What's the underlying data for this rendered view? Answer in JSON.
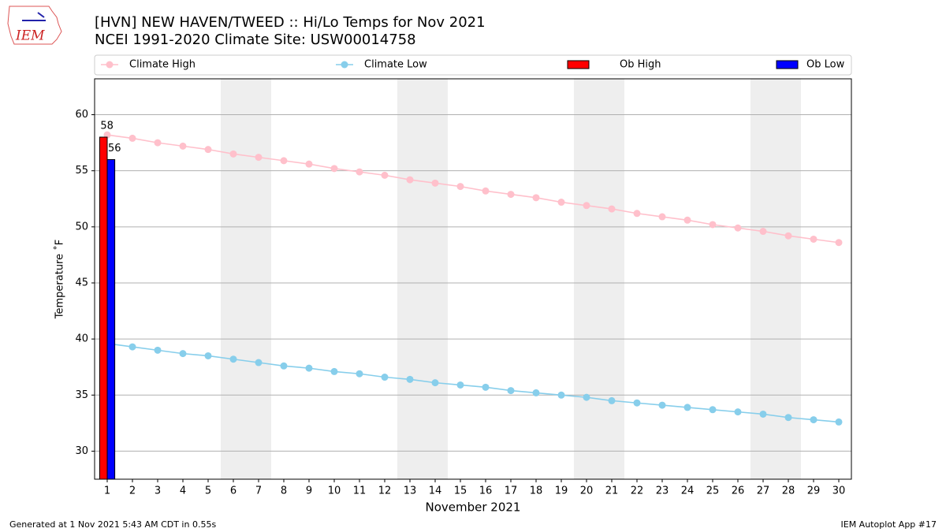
{
  "chart_data": {
    "type": "line",
    "title": "[HVN] NEW HAVEN/TWEED :: Hi/Lo Temps for Nov 2021",
    "subtitle": "NCEI 1991-2020 Climate Site: USW00014758",
    "xlabel": "November 2021",
    "ylabel": "Temperature ˚F",
    "logo_text": "IEM",
    "footer_left": "Generated at 1 Nov 2021 5:43 AM CDT in 0.55s",
    "footer_right": "IEM Autoplot App #17",
    "x": [
      1,
      2,
      3,
      4,
      5,
      6,
      7,
      8,
      9,
      10,
      11,
      12,
      13,
      14,
      15,
      16,
      17,
      18,
      19,
      20,
      21,
      22,
      23,
      24,
      25,
      26,
      27,
      28,
      29,
      30
    ],
    "xlim": [
      0.5,
      30.5
    ],
    "xticks": [
      1,
      2,
      3,
      4,
      5,
      6,
      7,
      8,
      9,
      10,
      11,
      12,
      13,
      14,
      15,
      16,
      17,
      18,
      19,
      20,
      21,
      22,
      23,
      24,
      25,
      26,
      27,
      28,
      29,
      30
    ],
    "ylim": [
      27.5,
      63.2
    ],
    "yticks": [
      30,
      35,
      40,
      45,
      50,
      55,
      60
    ],
    "grid": true,
    "shaded_days": [
      6,
      7,
      13,
      14,
      20,
      21,
      27,
      28
    ],
    "series": [
      {
        "name": "Climate High",
        "kind": "line",
        "color": "#ffc0cb",
        "values": [
          58.2,
          57.9,
          57.5,
          57.2,
          56.9,
          56.5,
          56.2,
          55.9,
          55.6,
          55.2,
          54.9,
          54.6,
          54.2,
          53.9,
          53.6,
          53.2,
          52.9,
          52.6,
          52.2,
          51.9,
          51.6,
          51.2,
          50.9,
          50.6,
          50.2,
          49.9,
          49.6,
          49.2,
          48.9,
          48.6
        ]
      },
      {
        "name": "Climate Low",
        "kind": "line",
        "color": "#87ceeb",
        "values": [
          39.6,
          39.3,
          39.0,
          38.7,
          38.5,
          38.2,
          37.9,
          37.6,
          37.4,
          37.1,
          36.9,
          36.6,
          36.4,
          36.1,
          35.9,
          35.7,
          35.4,
          35.2,
          35.0,
          34.8,
          34.5,
          34.3,
          34.1,
          33.9,
          33.7,
          33.5,
          33.3,
          33.0,
          32.8,
          32.6
        ]
      },
      {
        "name": "Ob High",
        "kind": "bar",
        "color": "#ff0000",
        "values": [
          58,
          null,
          null,
          null,
          null,
          null,
          null,
          null,
          null,
          null,
          null,
          null,
          null,
          null,
          null,
          null,
          null,
          null,
          null,
          null,
          null,
          null,
          null,
          null,
          null,
          null,
          null,
          null,
          null,
          null
        ]
      },
      {
        "name": "Ob Low",
        "kind": "bar",
        "color": "#0000ff",
        "values": [
          56,
          null,
          null,
          null,
          null,
          null,
          null,
          null,
          null,
          null,
          null,
          null,
          null,
          null,
          null,
          null,
          null,
          null,
          null,
          null,
          null,
          null,
          null,
          null,
          null,
          null,
          null,
          null,
          null,
          null
        ]
      }
    ]
  }
}
